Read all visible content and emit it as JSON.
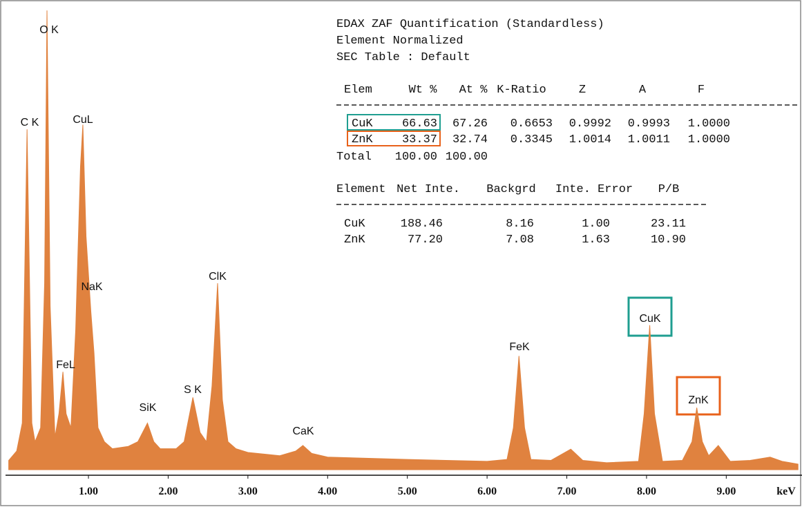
{
  "chart_data": {
    "type": "area",
    "color": "#e0823f",
    "xlabel": "keV",
    "xlim": [
      -0.04,
      9.95
    ],
    "ylim": [
      0,
      100
    ],
    "xticks": [
      {
        "value": 1,
        "label": "1.00"
      },
      {
        "value": 2,
        "label": "2.00"
      },
      {
        "value": 3,
        "label": "3.00"
      },
      {
        "value": 4,
        "label": "4.00"
      },
      {
        "value": 5,
        "label": "5.00"
      },
      {
        "value": 6,
        "label": "6.00"
      },
      {
        "value": 7,
        "label": "7.00"
      },
      {
        "value": 8,
        "label": "8.00"
      },
      {
        "value": 9,
        "label": "9.00"
      }
    ],
    "x": [
      0.0,
      0.1,
      0.17,
      0.23,
      0.29,
      0.33,
      0.4,
      0.45,
      0.48,
      0.52,
      0.58,
      0.63,
      0.68,
      0.72,
      0.78,
      0.84,
      0.9,
      0.93,
      0.97,
      1.03,
      1.07,
      1.12,
      1.2,
      1.3,
      1.5,
      1.62,
      1.74,
      1.82,
      1.9,
      2.1,
      2.2,
      2.31,
      2.4,
      2.48,
      2.55,
      2.62,
      2.68,
      2.75,
      2.85,
      3.0,
      3.4,
      3.6,
      3.69,
      3.8,
      4.0,
      5.0,
      6.0,
      6.25,
      6.33,
      6.4,
      6.47,
      6.55,
      6.8,
      7.05,
      7.2,
      7.5,
      7.9,
      7.97,
      8.04,
      8.1,
      8.2,
      8.45,
      8.57,
      8.63,
      8.7,
      8.78,
      8.9,
      9.05,
      9.3,
      9.55,
      9.7,
      9.9
    ],
    "values": [
      2,
      4,
      10,
      73,
      10,
      6,
      9,
      40,
      98.5,
      35,
      7,
      12,
      21,
      12,
      9,
      30,
      65,
      74,
      50,
      34,
      25,
      9,
      6,
      4.5,
      5,
      6,
      10,
      6,
      4.5,
      4.5,
      6,
      15.5,
      8,
      6,
      18,
      40,
      15,
      6,
      4.5,
      3.7,
      3,
      4,
      5.2,
      3.5,
      2.7,
      2.2,
      1.8,
      2.2,
      9,
      24.4,
      9,
      2.2,
      2,
      4.4,
      2,
      1.5,
      1.8,
      12,
      31,
      12,
      1.8,
      2,
      6,
      13.3,
      6,
      3,
      5.2,
      1.8,
      2,
      2.7,
      1.8,
      1.2
    ],
    "annotations": [
      "C K",
      "O K",
      "CuL",
      "NaK",
      "FeL",
      "SiK",
      "S K",
      "ClK",
      "CaK",
      "FeK",
      "CuK",
      "ZnK"
    ]
  },
  "quant_table": {
    "title_lines": [
      "EDAX ZAF Quantification (Standardless)",
      "Element Normalized",
      "SEC Table : Default"
    ],
    "table1": {
      "headers": [
        "Elem",
        "Wt %",
        "At %",
        "K-Ratio",
        "Z",
        "A",
        "F"
      ],
      "rows": [
        [
          "CuK",
          "66.63",
          "67.26",
          "0.6653",
          "0.9992",
          "0.9993",
          "1.0000"
        ],
        [
          "ZnK",
          "33.37",
          "32.74",
          "0.3345",
          "1.0014",
          "1.0011",
          "1.0000"
        ]
      ],
      "total": [
        "Total",
        "100.00",
        "100.00"
      ]
    },
    "table2": {
      "headers": [
        "Element",
        "Net Inte.",
        "Backgrd",
        "Inte. Error",
        "P/B"
      ],
      "rows": [
        [
          "CuK",
          "188.46",
          "8.16",
          "1.00",
          "23.11"
        ],
        [
          "ZnK",
          "77.20",
          "7.08",
          "1.63",
          "10.90"
        ]
      ]
    }
  }
}
